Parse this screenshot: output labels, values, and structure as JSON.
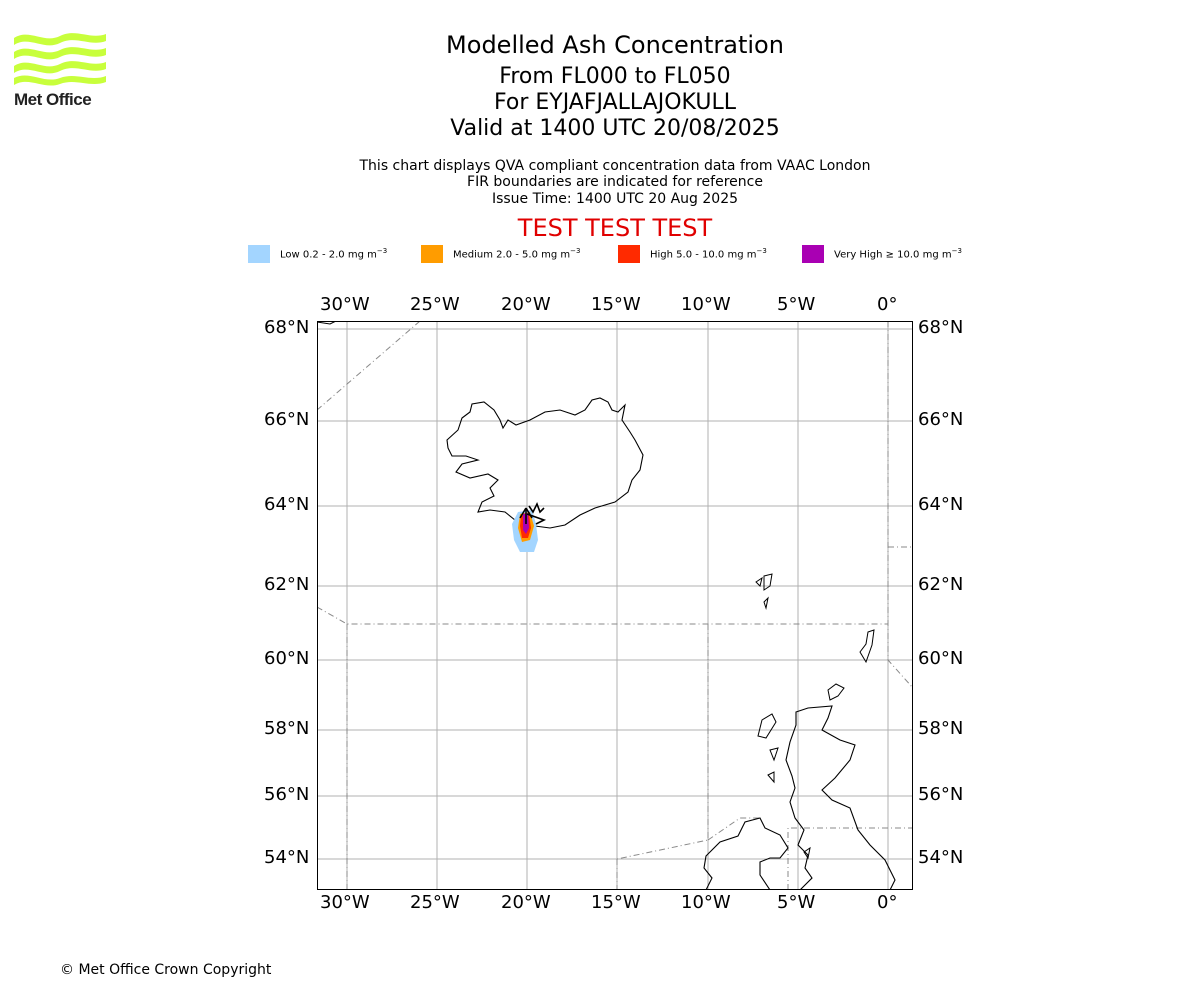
{
  "logo": {
    "text": "Met Office",
    "icon": "met-office-waves-logo",
    "color": "#c8ff3c"
  },
  "title": {
    "line1": "Modelled Ash Concentration",
    "line2": "From FL000 to FL050",
    "line3": "For EYJAFJALLAJOKULL",
    "line4": "Valid at 1400 UTC 20/08/2025"
  },
  "subtitle": {
    "line1": "This chart displays QVA compliant concentration data from VAAC London",
    "line2": "FIR boundaries are indicated for reference",
    "line3": "Issue Time: 1400 UTC 20 Aug 2025"
  },
  "test_banner": "TEST TEST TEST",
  "legend": [
    {
      "label": "Low 0.2 - 2.0 mg m",
      "unit_exp": "−3",
      "color": "#a3d5ff"
    },
    {
      "label": "Medium 2.0 - 5.0 mg m",
      "unit_exp": "−3",
      "color": "#ff9c00"
    },
    {
      "label": "High 5.0 - 10.0 mg m",
      "unit_exp": "−3",
      "color": "#ff2a00"
    },
    {
      "label": "Very High  ≥  10.0 mg m",
      "unit_exp": "−3",
      "color": "#a900b3"
    }
  ],
  "map": {
    "lon_ticks": [
      "30°W",
      "25°W",
      "20°W",
      "15°W",
      "10°W",
      "5°W",
      "0°"
    ],
    "lat_ticks": [
      "68°N",
      "66°N",
      "64°N",
      "62°N",
      "60°N",
      "58°N",
      "56°N",
      "54°N"
    ],
    "volcano": "EYJAFJALLAJOKULL"
  },
  "copyright": "© Met Office Crown Copyright"
}
